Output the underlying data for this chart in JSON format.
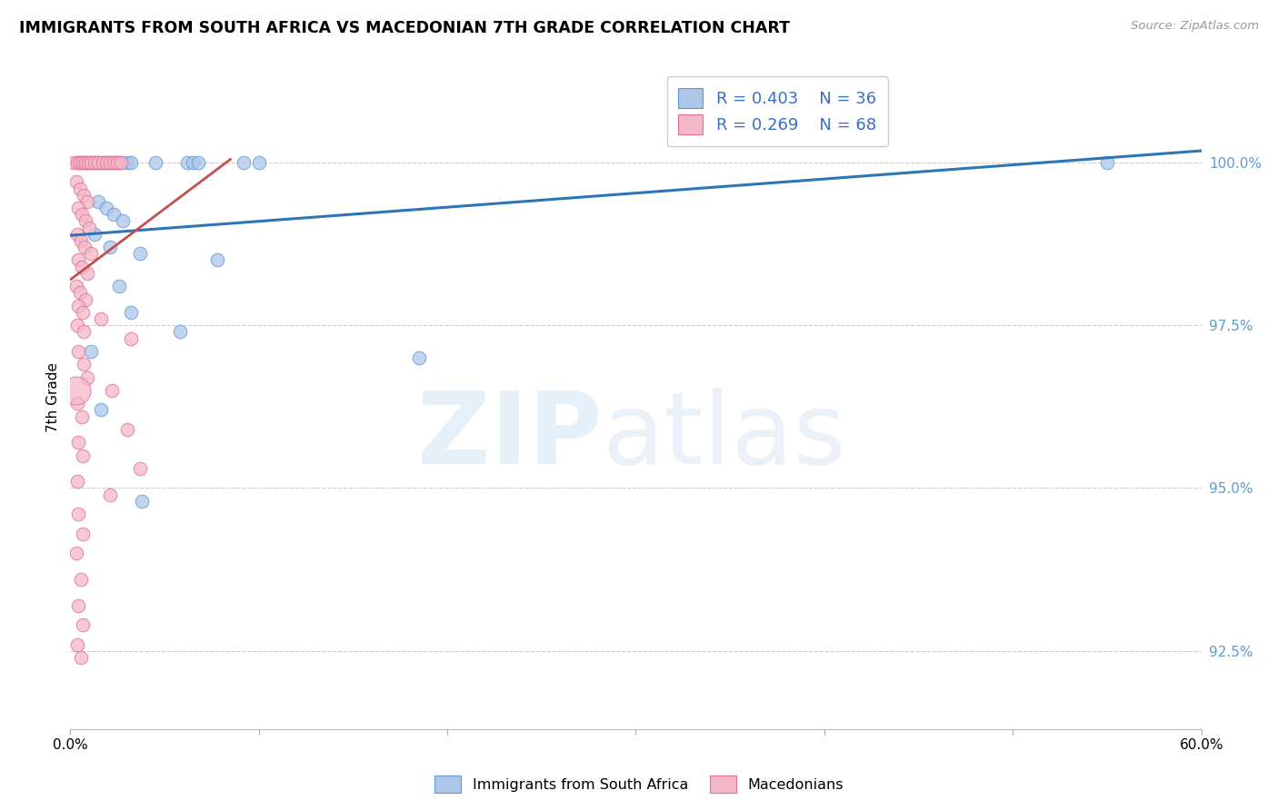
{
  "title": "IMMIGRANTS FROM SOUTH AFRICA VS MACEDONIAN 7TH GRADE CORRELATION CHART",
  "source": "Source: ZipAtlas.com",
  "ylabel": "7th Grade",
  "yticks": [
    92.5,
    95.0,
    97.5,
    100.0
  ],
  "ytick_labels": [
    "92.5%",
    "95.0%",
    "97.5%",
    "100.0%"
  ],
  "xmin": 0.0,
  "xmax": 60.0,
  "ymin": 91.3,
  "ymax": 101.5,
  "legend_blue_r": "R = 0.403",
  "legend_blue_n": "N = 36",
  "legend_pink_r": "R = 0.269",
  "legend_pink_n": "N = 68",
  "blue_color": "#aec6e8",
  "blue_edge_color": "#5b9bd5",
  "pink_color": "#f4b8c8",
  "pink_edge_color": "#e07090",
  "blue_line_color": "#2e75b6",
  "pink_line_color": "#c0504d",
  "blue_scatter": [
    [
      0.5,
      100.0
    ],
    [
      0.7,
      100.0
    ],
    [
      0.9,
      100.0
    ],
    [
      1.1,
      100.0
    ],
    [
      1.3,
      100.0
    ],
    [
      1.5,
      100.0
    ],
    [
      1.7,
      100.0
    ],
    [
      1.9,
      100.0
    ],
    [
      2.1,
      100.0
    ],
    [
      2.3,
      100.0
    ],
    [
      2.5,
      100.0
    ],
    [
      2.7,
      100.0
    ],
    [
      3.0,
      100.0
    ],
    [
      3.2,
      100.0
    ],
    [
      4.5,
      100.0
    ],
    [
      6.2,
      100.0
    ],
    [
      6.5,
      100.0
    ],
    [
      6.8,
      100.0
    ],
    [
      9.2,
      100.0
    ],
    [
      10.0,
      100.0
    ],
    [
      55.0,
      100.0
    ],
    [
      1.5,
      99.4
    ],
    [
      1.9,
      99.3
    ],
    [
      2.3,
      99.2
    ],
    [
      2.8,
      99.1
    ],
    [
      1.3,
      98.9
    ],
    [
      2.1,
      98.7
    ],
    [
      3.7,
      98.6
    ],
    [
      7.8,
      98.5
    ],
    [
      2.6,
      98.1
    ],
    [
      3.2,
      97.7
    ],
    [
      5.8,
      97.4
    ],
    [
      1.1,
      97.1
    ],
    [
      18.5,
      97.0
    ],
    [
      1.6,
      96.2
    ],
    [
      3.8,
      94.8
    ]
  ],
  "pink_scatter": [
    [
      0.2,
      100.0
    ],
    [
      0.35,
      100.0
    ],
    [
      0.5,
      100.0
    ],
    [
      0.65,
      100.0
    ],
    [
      0.8,
      100.0
    ],
    [
      0.95,
      100.0
    ],
    [
      1.1,
      100.0
    ],
    [
      1.3,
      100.0
    ],
    [
      1.5,
      100.0
    ],
    [
      1.7,
      100.0
    ],
    [
      1.9,
      100.0
    ],
    [
      2.1,
      100.0
    ],
    [
      2.3,
      100.0
    ],
    [
      2.5,
      100.0
    ],
    [
      2.7,
      100.0
    ],
    [
      0.3,
      99.7
    ],
    [
      0.5,
      99.6
    ],
    [
      0.7,
      99.5
    ],
    [
      0.9,
      99.4
    ],
    [
      0.4,
      99.3
    ],
    [
      0.6,
      99.2
    ],
    [
      0.8,
      99.1
    ],
    [
      1.0,
      99.0
    ],
    [
      0.35,
      98.9
    ],
    [
      0.55,
      98.8
    ],
    [
      0.75,
      98.7
    ],
    [
      1.1,
      98.6
    ],
    [
      0.4,
      98.5
    ],
    [
      0.6,
      98.4
    ],
    [
      0.9,
      98.3
    ],
    [
      0.3,
      98.1
    ],
    [
      0.5,
      98.0
    ],
    [
      0.8,
      97.9
    ],
    [
      0.4,
      97.8
    ],
    [
      0.65,
      97.7
    ],
    [
      1.6,
      97.6
    ],
    [
      0.35,
      97.5
    ],
    [
      0.7,
      97.4
    ],
    [
      3.2,
      97.3
    ],
    [
      0.4,
      97.1
    ],
    [
      0.7,
      96.9
    ],
    [
      0.9,
      96.7
    ],
    [
      2.2,
      96.5
    ],
    [
      0.35,
      96.3
    ],
    [
      0.6,
      96.1
    ],
    [
      3.0,
      95.9
    ],
    [
      0.4,
      95.7
    ],
    [
      0.65,
      95.5
    ],
    [
      3.7,
      95.3
    ],
    [
      0.35,
      95.1
    ],
    [
      2.1,
      94.9
    ],
    [
      0.4,
      94.6
    ],
    [
      0.65,
      94.3
    ],
    [
      0.3,
      94.0
    ],
    [
      0.55,
      93.6
    ],
    [
      0.4,
      93.2
    ],
    [
      0.65,
      92.9
    ],
    [
      0.35,
      92.6
    ],
    [
      0.55,
      92.4
    ]
  ],
  "blue_line": [
    [
      0,
      98.88
    ],
    [
      60,
      100.18
    ]
  ],
  "pink_line": [
    [
      0,
      98.2
    ],
    [
      8.5,
      100.05
    ]
  ],
  "large_pink_dot_x": 0.3,
  "large_pink_dot_y": 96.5,
  "large_pink_dot_size": 500
}
